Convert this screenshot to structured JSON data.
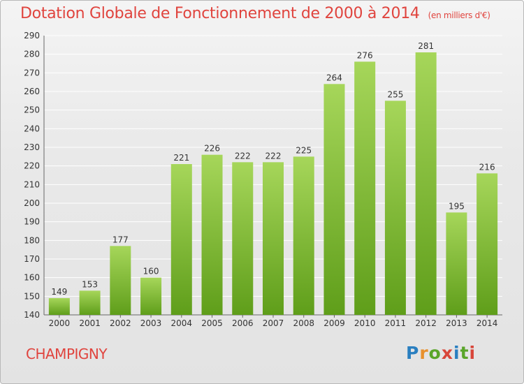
{
  "title": "Dotation Globale de Fonctionnement de 2000 à 2014",
  "unit_note": "(en milliers d'€)",
  "commune": "CHAMPIGNY",
  "brand": {
    "letters": [
      "P",
      "r",
      "o",
      "x",
      "i",
      "t",
      "i"
    ],
    "colors": [
      "#2a7fc0",
      "#e8912e",
      "#5aa52a",
      "#d8463a",
      "#2a7fc0",
      "#5aa52a",
      "#d8463a"
    ]
  },
  "colors": {
    "bar_top": "#a6d65a",
    "bar_bottom": "#5f9e1a",
    "grid": "#ffffff",
    "text": "#333333",
    "accent": "#e0443e"
  },
  "chart_data": {
    "type": "bar",
    "title": "Dotation Globale de Fonctionnement de 2000 à 2014",
    "xlabel": "",
    "ylabel": "",
    "categories": [
      "2000",
      "2001",
      "2002",
      "2003",
      "2004",
      "2005",
      "2006",
      "2007",
      "2008",
      "2009",
      "2010",
      "2011",
      "2012",
      "2013",
      "2014"
    ],
    "values": [
      149,
      153,
      177,
      160,
      221,
      226,
      222,
      222,
      225,
      264,
      276,
      255,
      281,
      195,
      216
    ],
    "ylim": [
      140,
      290
    ],
    "yticks": [
      140,
      150,
      160,
      170,
      180,
      190,
      200,
      210,
      220,
      230,
      240,
      250,
      260,
      270,
      280,
      290
    ],
    "data_labels": true,
    "grid": true,
    "legend": "none"
  }
}
